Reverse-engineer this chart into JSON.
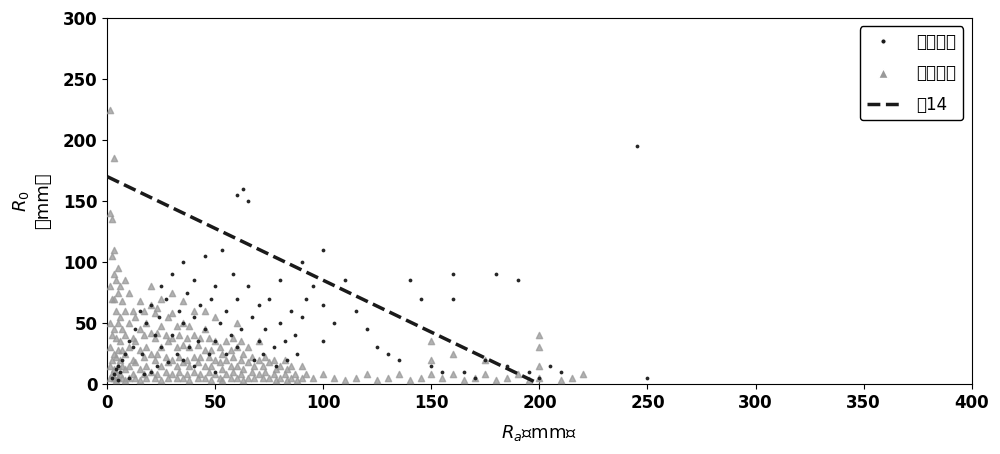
{
  "xlabel_math": "$R_{a}$",
  "xlabel_unit": "（mm）",
  "ylabel_math": "$R_{0}$",
  "ylabel_unit": "（mm）",
  "xlim": [
    0,
    400
  ],
  "ylim": [
    0,
    300
  ],
  "xticks": [
    0,
    50,
    100,
    150,
    200,
    250,
    300,
    350,
    400
  ],
  "yticks": [
    0,
    50,
    100,
    150,
    200,
    250,
    300
  ],
  "line_x": [
    0,
    200
  ],
  "line_y": [
    170,
    0
  ],
  "line_color": "#1a1a1a",
  "line_width": 2.5,
  "legend_disaster": "有灾害日",
  "legend_no_disaster": "无灾害日",
  "legend_line": "式14",
  "disaster_dots": [
    [
      2,
      5
    ],
    [
      3,
      8
    ],
    [
      4,
      12
    ],
    [
      5,
      15
    ],
    [
      5,
      3
    ],
    [
      6,
      10
    ],
    [
      7,
      20
    ],
    [
      8,
      25
    ],
    [
      10,
      35
    ],
    [
      10,
      5
    ],
    [
      12,
      30
    ],
    [
      13,
      45
    ],
    [
      15,
      60
    ],
    [
      16,
      25
    ],
    [
      17,
      8
    ],
    [
      18,
      50
    ],
    [
      20,
      65
    ],
    [
      20,
      10
    ],
    [
      22,
      40
    ],
    [
      23,
      15
    ],
    [
      24,
      55
    ],
    [
      25,
      80
    ],
    [
      25,
      30
    ],
    [
      27,
      70
    ],
    [
      28,
      18
    ],
    [
      30,
      90
    ],
    [
      30,
      40
    ],
    [
      32,
      25
    ],
    [
      33,
      60
    ],
    [
      35,
      100
    ],
    [
      35,
      50
    ],
    [
      35,
      20
    ],
    [
      37,
      75
    ],
    [
      38,
      30
    ],
    [
      40,
      85
    ],
    [
      40,
      55
    ],
    [
      40,
      15
    ],
    [
      42,
      35
    ],
    [
      43,
      65
    ],
    [
      45,
      105
    ],
    [
      45,
      45
    ],
    [
      47,
      25
    ],
    [
      48,
      70
    ],
    [
      50,
      80
    ],
    [
      50,
      35
    ],
    [
      50,
      10
    ],
    [
      52,
      50
    ],
    [
      53,
      110
    ],
    [
      55,
      60
    ],
    [
      55,
      25
    ],
    [
      57,
      40
    ],
    [
      58,
      90
    ],
    [
      60,
      155
    ],
    [
      60,
      70
    ],
    [
      60,
      30
    ],
    [
      62,
      45
    ],
    [
      63,
      160
    ],
    [
      65,
      150
    ],
    [
      65,
      80
    ],
    [
      67,
      55
    ],
    [
      68,
      20
    ],
    [
      70,
      65
    ],
    [
      70,
      35
    ],
    [
      72,
      25
    ],
    [
      73,
      45
    ],
    [
      75,
      70
    ],
    [
      77,
      30
    ],
    [
      78,
      15
    ],
    [
      80,
      85
    ],
    [
      80,
      50
    ],
    [
      82,
      35
    ],
    [
      83,
      20
    ],
    [
      85,
      60
    ],
    [
      87,
      40
    ],
    [
      88,
      25
    ],
    [
      90,
      100
    ],
    [
      90,
      55
    ],
    [
      92,
      70
    ],
    [
      95,
      80
    ],
    [
      100,
      110
    ],
    [
      100,
      65
    ],
    [
      100,
      35
    ],
    [
      105,
      50
    ],
    [
      110,
      85
    ],
    [
      115,
      60
    ],
    [
      120,
      45
    ],
    [
      125,
      30
    ],
    [
      130,
      25
    ],
    [
      135,
      20
    ],
    [
      140,
      85
    ],
    [
      145,
      70
    ],
    [
      150,
      15
    ],
    [
      155,
      10
    ],
    [
      160,
      90
    ],
    [
      160,
      70
    ],
    [
      165,
      10
    ],
    [
      170,
      5
    ],
    [
      175,
      20
    ],
    [
      180,
      90
    ],
    [
      185,
      15
    ],
    [
      190,
      85
    ],
    [
      195,
      10
    ],
    [
      200,
      5
    ],
    [
      205,
      15
    ],
    [
      210,
      10
    ],
    [
      245,
      195
    ],
    [
      250,
      5
    ]
  ],
  "no_disaster_dots": [
    [
      1,
      5
    ],
    [
      1,
      15
    ],
    [
      1,
      30
    ],
    [
      1,
      50
    ],
    [
      1,
      80
    ],
    [
      1,
      140
    ],
    [
      1,
      225
    ],
    [
      2,
      8
    ],
    [
      2,
      20
    ],
    [
      2,
      40
    ],
    [
      2,
      70
    ],
    [
      2,
      105
    ],
    [
      2,
      135
    ],
    [
      3,
      5
    ],
    [
      3,
      12
    ],
    [
      3,
      25
    ],
    [
      3,
      45
    ],
    [
      3,
      70
    ],
    [
      3,
      90
    ],
    [
      3,
      110
    ],
    [
      3,
      185
    ],
    [
      4,
      3
    ],
    [
      4,
      10
    ],
    [
      4,
      22
    ],
    [
      4,
      38
    ],
    [
      4,
      60
    ],
    [
      4,
      85
    ],
    [
      5,
      5
    ],
    [
      5,
      15
    ],
    [
      5,
      28
    ],
    [
      5,
      50
    ],
    [
      5,
      75
    ],
    [
      5,
      95
    ],
    [
      6,
      8
    ],
    [
      6,
      20
    ],
    [
      6,
      35
    ],
    [
      6,
      55
    ],
    [
      6,
      80
    ],
    [
      7,
      5
    ],
    [
      7,
      15
    ],
    [
      7,
      28
    ],
    [
      7,
      45
    ],
    [
      7,
      68
    ],
    [
      8,
      3
    ],
    [
      8,
      12
    ],
    [
      8,
      25
    ],
    [
      8,
      40
    ],
    [
      8,
      60
    ],
    [
      8,
      85
    ],
    [
      10,
      5
    ],
    [
      10,
      15
    ],
    [
      10,
      30
    ],
    [
      10,
      50
    ],
    [
      10,
      75
    ],
    [
      12,
      8
    ],
    [
      12,
      20
    ],
    [
      12,
      38
    ],
    [
      12,
      60
    ],
    [
      13,
      5
    ],
    [
      13,
      18
    ],
    [
      13,
      35
    ],
    [
      13,
      55
    ],
    [
      15,
      3
    ],
    [
      15,
      12
    ],
    [
      15,
      28
    ],
    [
      15,
      45
    ],
    [
      15,
      68
    ],
    [
      17,
      8
    ],
    [
      17,
      22
    ],
    [
      17,
      40
    ],
    [
      17,
      60
    ],
    [
      18,
      5
    ],
    [
      18,
      15
    ],
    [
      18,
      30
    ],
    [
      18,
      50
    ],
    [
      20,
      10
    ],
    [
      20,
      25
    ],
    [
      20,
      42
    ],
    [
      20,
      65
    ],
    [
      20,
      80
    ],
    [
      22,
      5
    ],
    [
      22,
      20
    ],
    [
      22,
      38
    ],
    [
      22,
      58
    ],
    [
      23,
      8
    ],
    [
      23,
      25
    ],
    [
      23,
      42
    ],
    [
      23,
      62
    ],
    [
      25,
      3
    ],
    [
      25,
      15
    ],
    [
      25,
      30
    ],
    [
      25,
      48
    ],
    [
      25,
      70
    ],
    [
      27,
      10
    ],
    [
      27,
      22
    ],
    [
      27,
      40
    ],
    [
      28,
      5
    ],
    [
      28,
      18
    ],
    [
      28,
      35
    ],
    [
      28,
      55
    ],
    [
      30,
      8
    ],
    [
      30,
      20
    ],
    [
      30,
      38
    ],
    [
      30,
      58
    ],
    [
      30,
      75
    ],
    [
      32,
      5
    ],
    [
      32,
      15
    ],
    [
      32,
      30
    ],
    [
      32,
      48
    ],
    [
      33,
      10
    ],
    [
      33,
      22
    ],
    [
      33,
      40
    ],
    [
      35,
      5
    ],
    [
      35,
      18
    ],
    [
      35,
      32
    ],
    [
      35,
      50
    ],
    [
      35,
      68
    ],
    [
      37,
      8
    ],
    [
      37,
      20
    ],
    [
      37,
      38
    ],
    [
      38,
      3
    ],
    [
      38,
      15
    ],
    [
      38,
      30
    ],
    [
      38,
      48
    ],
    [
      40,
      10
    ],
    [
      40,
      22
    ],
    [
      40,
      40
    ],
    [
      40,
      60
    ],
    [
      42,
      5
    ],
    [
      42,
      18
    ],
    [
      42,
      32
    ],
    [
      43,
      8
    ],
    [
      43,
      22
    ],
    [
      43,
      38
    ],
    [
      45,
      5
    ],
    [
      45,
      15
    ],
    [
      45,
      28
    ],
    [
      45,
      45
    ],
    [
      45,
      60
    ],
    [
      47,
      10
    ],
    [
      47,
      22
    ],
    [
      47,
      38
    ],
    [
      48,
      3
    ],
    [
      48,
      15
    ],
    [
      48,
      28
    ],
    [
      50,
      8
    ],
    [
      50,
      20
    ],
    [
      50,
      35
    ],
    [
      50,
      55
    ],
    [
      52,
      5
    ],
    [
      52,
      18
    ],
    [
      52,
      30
    ],
    [
      53,
      3
    ],
    [
      53,
      12
    ],
    [
      53,
      25
    ],
    [
      55,
      8
    ],
    [
      55,
      20
    ],
    [
      55,
      35
    ],
    [
      57,
      5
    ],
    [
      57,
      15
    ],
    [
      57,
      28
    ],
    [
      58,
      10
    ],
    [
      58,
      22
    ],
    [
      58,
      38
    ],
    [
      60,
      5
    ],
    [
      60,
      15
    ],
    [
      60,
      30
    ],
    [
      60,
      50
    ],
    [
      62,
      8
    ],
    [
      62,
      20
    ],
    [
      62,
      35
    ],
    [
      63,
      3
    ],
    [
      63,
      12
    ],
    [
      63,
      25
    ],
    [
      65,
      5
    ],
    [
      65,
      18
    ],
    [
      65,
      30
    ],
    [
      67,
      10
    ],
    [
      67,
      22
    ],
    [
      68,
      5
    ],
    [
      68,
      15
    ],
    [
      70,
      8
    ],
    [
      70,
      20
    ],
    [
      70,
      35
    ],
    [
      72,
      5
    ],
    [
      72,
      15
    ],
    [
      73,
      10
    ],
    [
      73,
      22
    ],
    [
      75,
      5
    ],
    [
      75,
      18
    ],
    [
      77,
      8
    ],
    [
      77,
      20
    ],
    [
      78,
      3
    ],
    [
      78,
      12
    ],
    [
      80,
      5
    ],
    [
      80,
      15
    ],
    [
      82,
      8
    ],
    [
      82,
      20
    ],
    [
      83,
      3
    ],
    [
      83,
      12
    ],
    [
      85,
      5
    ],
    [
      85,
      15
    ],
    [
      87,
      8
    ],
    [
      88,
      3
    ],
    [
      90,
      5
    ],
    [
      90,
      15
    ],
    [
      92,
      8
    ],
    [
      95,
      5
    ],
    [
      100,
      8
    ],
    [
      105,
      5
    ],
    [
      110,
      3
    ],
    [
      115,
      5
    ],
    [
      120,
      8
    ],
    [
      125,
      3
    ],
    [
      130,
      5
    ],
    [
      135,
      8
    ],
    [
      140,
      3
    ],
    [
      145,
      5
    ],
    [
      150,
      8
    ],
    [
      150,
      20
    ],
    [
      150,
      35
    ],
    [
      155,
      5
    ],
    [
      160,
      8
    ],
    [
      160,
      25
    ],
    [
      165,
      3
    ],
    [
      170,
      5
    ],
    [
      175,
      8
    ],
    [
      175,
      20
    ],
    [
      180,
      3
    ],
    [
      185,
      5
    ],
    [
      190,
      8
    ],
    [
      195,
      3
    ],
    [
      200,
      5
    ],
    [
      200,
      15
    ],
    [
      200,
      30
    ],
    [
      200,
      40
    ],
    [
      210,
      3
    ],
    [
      215,
      5
    ],
    [
      220,
      8
    ]
  ],
  "background_color": "#ffffff",
  "plot_bg_color": "#ffffff",
  "dot_color_disaster": "#1a1a1a",
  "dot_color_no_disaster": "#999999",
  "dot_size_disaster": 12,
  "dot_size_no_disaster": 20
}
